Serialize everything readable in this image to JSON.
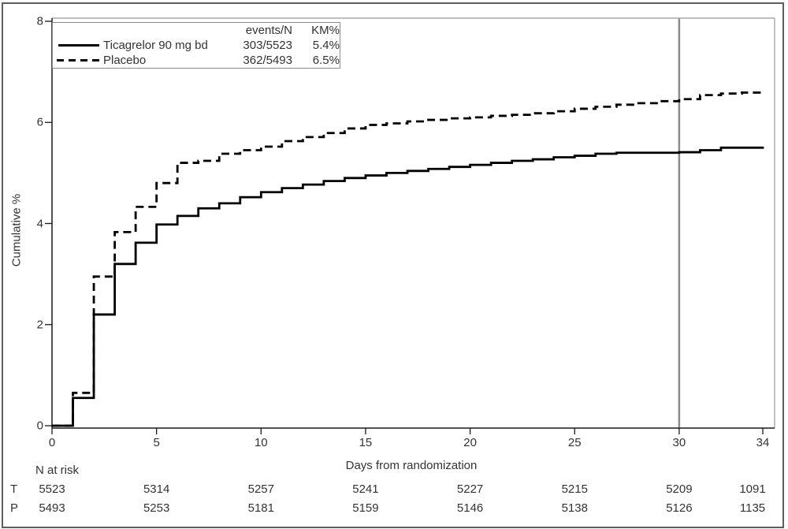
{
  "figure": {
    "background": "#ffffff",
    "border_color": "#5e5e5e",
    "axis_color": "#1a1a1a",
    "frame_color": "#a8a8a8",
    "text_color": "#333333"
  },
  "chart_data": {
    "type": "line",
    "subtype": "kaplan-meier-step",
    "title": "",
    "xlabel": "Days from randomization",
    "ylabel": "Cumulative %",
    "xlim": [
      0,
      34.6
    ],
    "ylim": [
      0,
      8
    ],
    "x_ticks": [
      0,
      5,
      10,
      15,
      20,
      25,
      30,
      34
    ],
    "y_ticks": [
      0,
      2,
      4,
      6,
      8
    ],
    "grid": false,
    "legend": {
      "position": "top-left",
      "col_header_events": "events/N",
      "col_header_km": "KM%"
    },
    "reference_line": {
      "x": 30,
      "color": "#8c8c8c"
    },
    "series": [
      {
        "name": "Ticagrelor 90 mg bd",
        "line_style": "solid",
        "color": "#000000",
        "events_n": "303/5523",
        "km_pct": "5.4%",
        "values_by_day": [
          0,
          0.55,
          2.2,
          3.2,
          3.62,
          3.98,
          4.15,
          4.3,
          4.4,
          4.52,
          4.62,
          4.7,
          4.77,
          4.84,
          4.9,
          4.95,
          5.0,
          5.04,
          5.08,
          5.12,
          5.16,
          5.2,
          5.24,
          5.27,
          5.31,
          5.34,
          5.38,
          5.4,
          5.4,
          5.4,
          5.41,
          5.45,
          5.5,
          5.5,
          5.52
        ]
      },
      {
        "name": "Placebo",
        "line_style": "dashed",
        "color": "#000000",
        "events_n": "362/5493",
        "km_pct": "6.5%",
        "values_by_day": [
          0,
          0.65,
          2.95,
          3.83,
          4.33,
          4.8,
          5.2,
          5.24,
          5.38,
          5.45,
          5.52,
          5.63,
          5.71,
          5.79,
          5.88,
          5.95,
          5.98,
          6.02,
          6.05,
          6.08,
          6.1,
          6.13,
          6.15,
          6.18,
          6.22,
          6.27,
          6.31,
          6.35,
          6.38,
          6.42,
          6.46,
          6.54,
          6.57,
          6.59,
          6.62
        ]
      }
    ],
    "risk_table": {
      "title": "N at risk",
      "days": [
        0,
        5,
        10,
        15,
        20,
        25,
        30,
        34
      ],
      "rows": [
        {
          "label": "T",
          "counts": [
            "5523",
            "5314",
            "5257",
            "5241",
            "5227",
            "5215",
            "5209",
            "1091"
          ]
        },
        {
          "label": "P",
          "counts": [
            "5493",
            "5253",
            "5181",
            "5159",
            "5146",
            "5138",
            "5126",
            "1135"
          ]
        }
      ]
    }
  }
}
